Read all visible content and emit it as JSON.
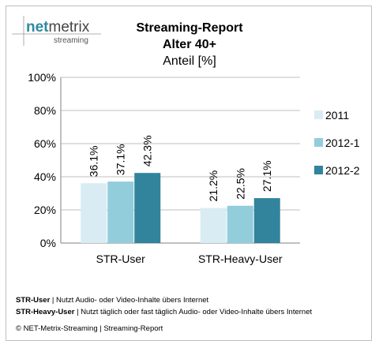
{
  "logo": {
    "part1": "net",
    "part2": "metrix",
    "sub": "streaming",
    "accent_color": "#2e8aa0"
  },
  "footnotes": [
    {
      "term": "STR-User",
      "text": " | Nutzt Audio- oder Video-Inhalte übers Internet"
    },
    {
      "term": "STR-Heavy-User",
      "text": " | Nutzt täglich oder fast täglich Audio- oder Video-Inhalte übers Internet"
    }
  ],
  "copyright": "© NET-Metrix-Streaming | Streaming-Report",
  "chart_data": {
    "type": "bar",
    "title": "Streaming-Report",
    "title_line2": "Alter 40+",
    "subtitle": "Anteil [%]",
    "categories": [
      "STR-User",
      "STR-Heavy-User"
    ],
    "series": [
      {
        "name": "2011",
        "color": "#d9ecf3",
        "values": [
          36.1,
          21.2
        ],
        "labels": [
          "36.1%",
          "21.2%"
        ]
      },
      {
        "name": "2012-1",
        "color": "#92cddc",
        "values": [
          37.1,
          22.5
        ],
        "labels": [
          "37.1%",
          "22.5%"
        ]
      },
      {
        "name": "2012-2",
        "color": "#31849b",
        "values": [
          42.3,
          27.1
        ],
        "labels": [
          "42.3%",
          "27.1%"
        ]
      }
    ],
    "yticks": [
      "0%",
      "20%",
      "40%",
      "60%",
      "80%",
      "100%"
    ],
    "ylim": [
      0,
      100
    ],
    "grid": true,
    "legend_position": "right"
  }
}
